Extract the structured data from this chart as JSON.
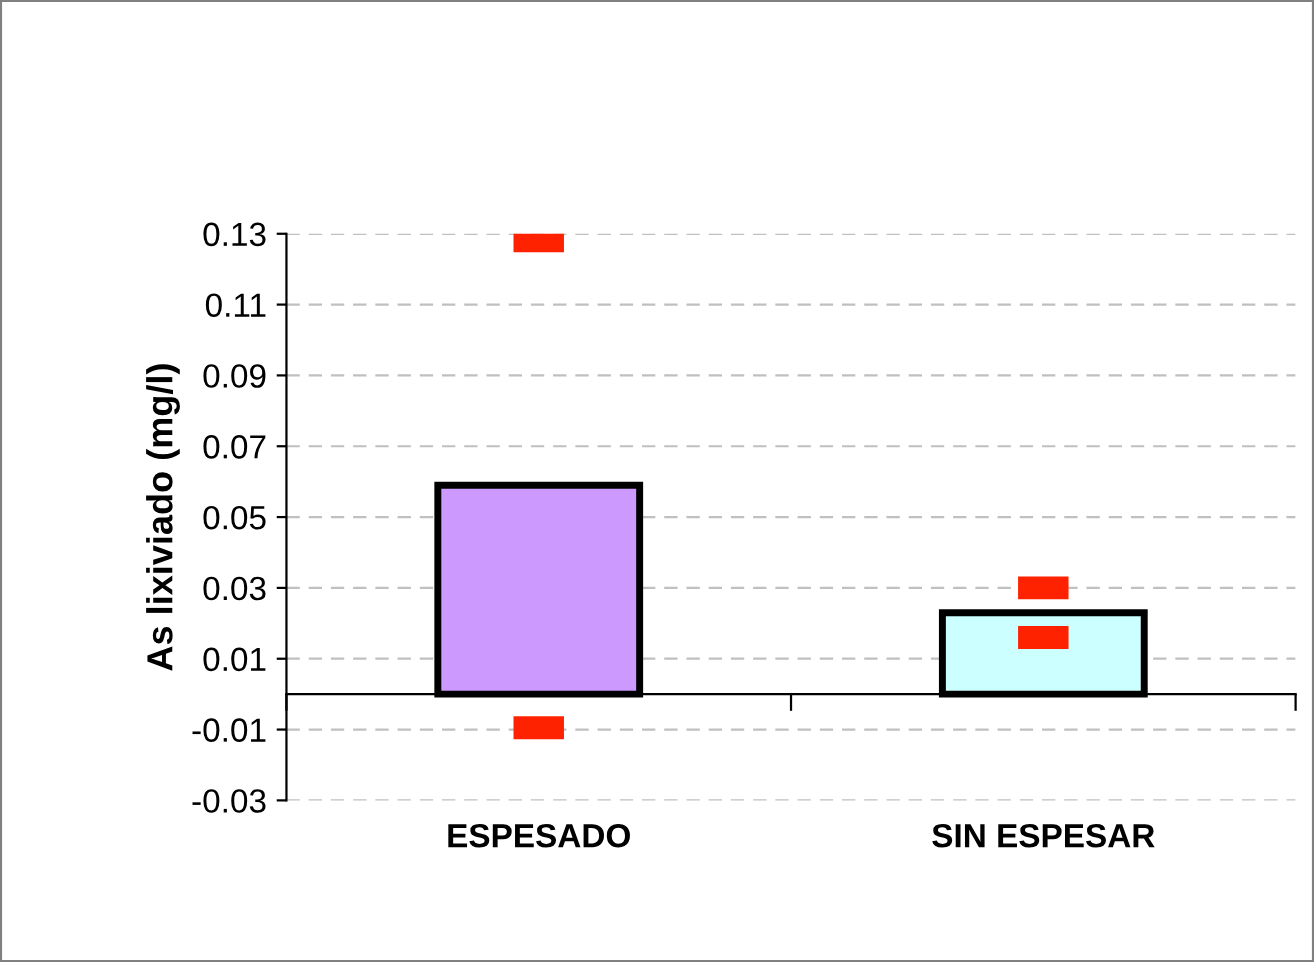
{
  "chart_data": {
    "type": "bar",
    "ylabel": "As lixiviado (mg/l)",
    "categories": [
      "ESPESADO",
      "SIN ESPESAR"
    ],
    "series": [
      {
        "type": "bar",
        "values": [
          0.059,
          0.023
        ],
        "colors": [
          "#cc99ff",
          "#ccffff"
        ]
      },
      {
        "type": "scatter",
        "color": "#ff2200",
        "x": [
          "ESPESADO",
          "SIN ESPESAR"
        ],
        "values": [
          0.128,
          0.03
        ]
      },
      {
        "type": "scatter",
        "color": "#ff2200",
        "x": [
          "ESPESADO",
          "SIN ESPESAR"
        ],
        "values": [
          -0.0095,
          0.016
        ]
      }
    ],
    "ylim": [
      -0.03,
      0.13
    ],
    "yticks": [
      -0.03,
      -0.01,
      0.01,
      0.03,
      0.05,
      0.07,
      0.09,
      0.11,
      0.13
    ],
    "grid": "y",
    "legend": false
  }
}
